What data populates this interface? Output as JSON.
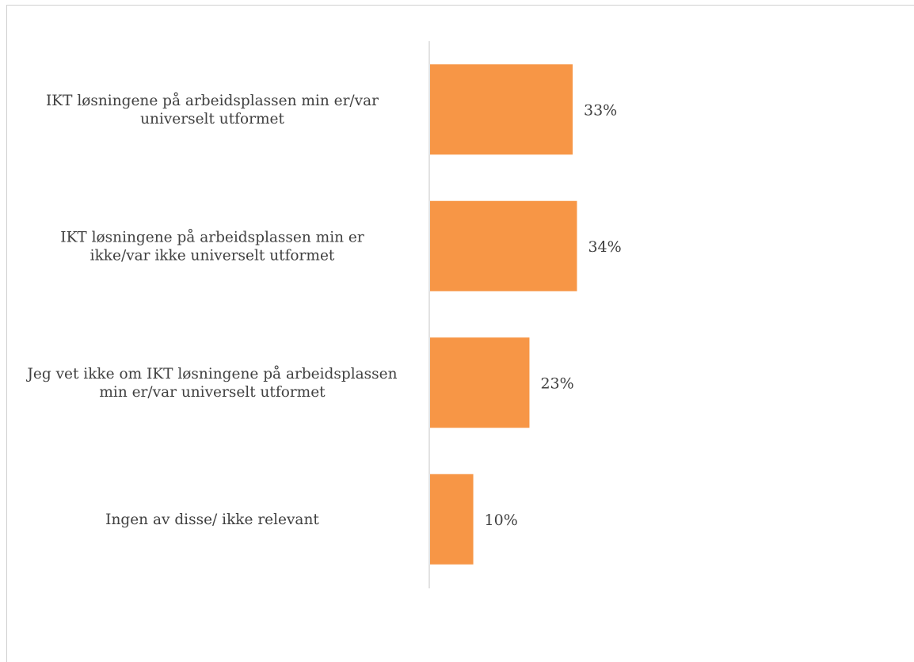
{
  "chart_data": {
    "type": "bar",
    "orientation": "horizontal",
    "categories": [
      [
        "IKT løsningene på arbeidsplassen min er/var",
        "universelt utformet"
      ],
      [
        "IKT løsningene på arbeidsplassen min er",
        "ikke/var ikke universelt utformet"
      ],
      [
        "Jeg vet ikke om IKT løsningene på arbeidsplassen",
        "min er/var universelt utformet"
      ],
      [
        "Ingen av disse/ ikke relevant"
      ]
    ],
    "values": [
      33,
      34,
      23,
      10
    ],
    "value_labels": [
      "33%",
      "34%",
      "23%",
      "10%"
    ],
    "bar_color": "#f79646",
    "axis_color": "#d9d9d9",
    "grid": false,
    "xlim": [
      0,
      100
    ]
  }
}
